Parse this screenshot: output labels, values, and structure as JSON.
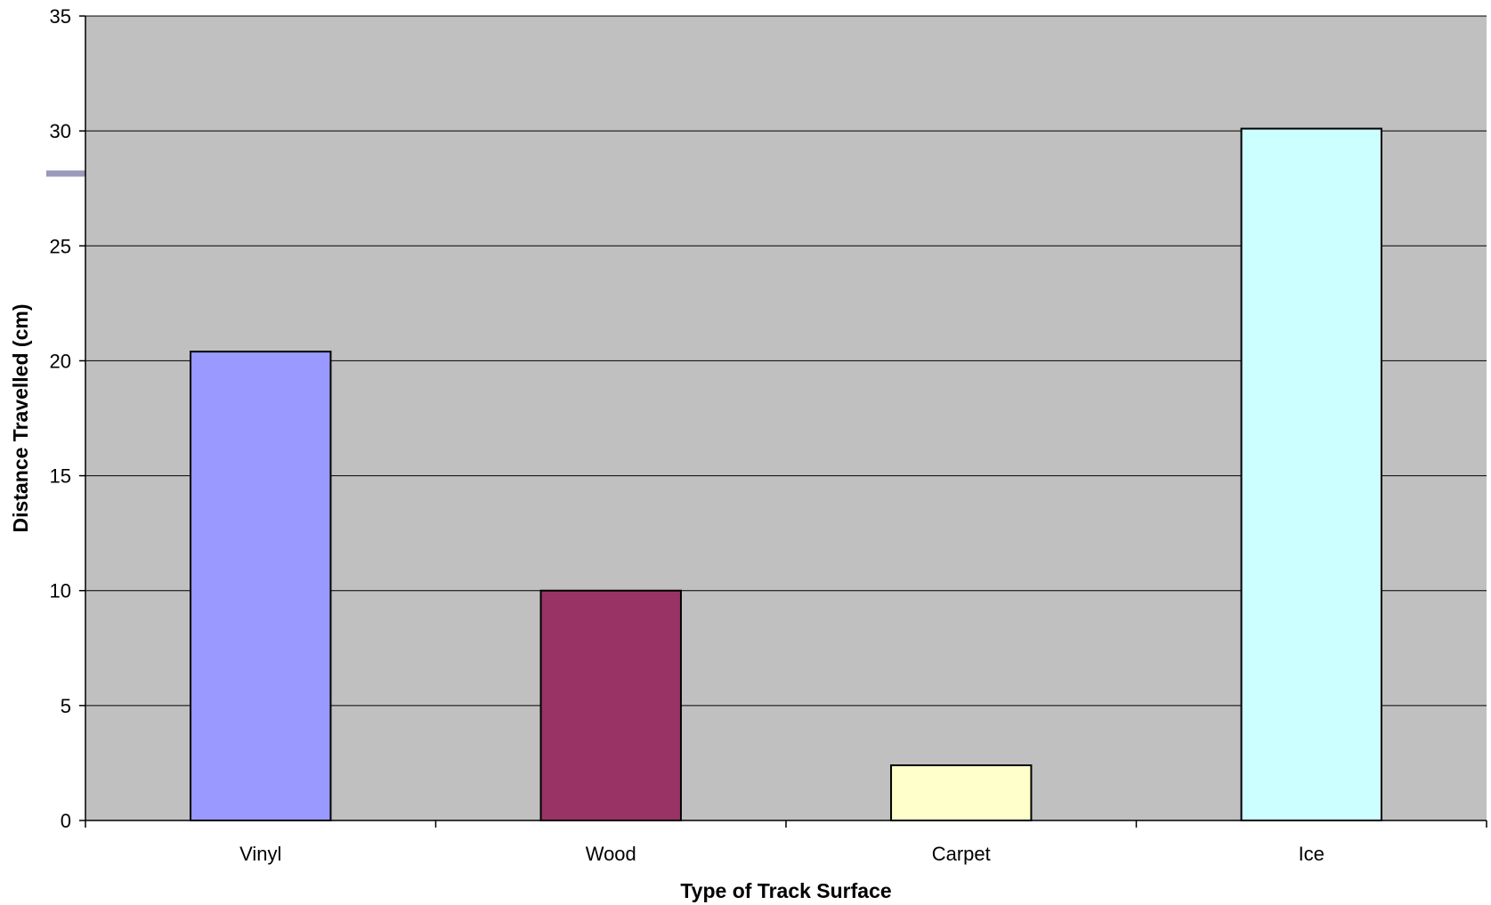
{
  "chart_data": {
    "type": "bar",
    "categories": [
      "Vinyl",
      "Wood",
      "Carpet",
      "Ice"
    ],
    "values": [
      20.4,
      10.0,
      2.4,
      30.1
    ],
    "bar_colors": [
      "#9999ff",
      "#993366",
      "#ffffcc",
      "#ccffff"
    ],
    "xlabel": "Type of Track Surface",
    "ylabel": "Distance Travelled (cm)",
    "ylim": [
      0,
      35
    ],
    "yticks": [
      0,
      5,
      10,
      15,
      20,
      25,
      30,
      35
    ],
    "grid": true,
    "plot_background": "#c0c0c0",
    "legend": "none"
  }
}
